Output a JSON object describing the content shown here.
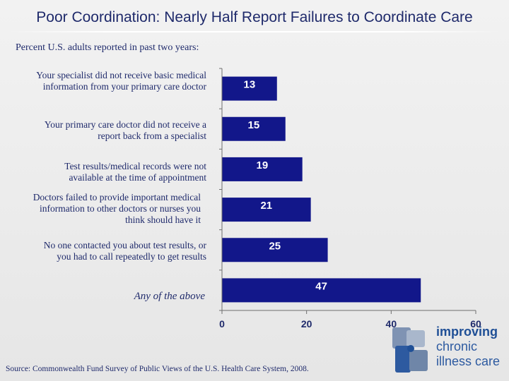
{
  "title": "Poor Coordination: Nearly Half Report Failures to Coordinate Care",
  "subtitle": "Percent U.S. adults reported in past two years:",
  "source": "Source: Commonwealth Fund Survey of Public Views of the U.S. Health Care System, 2008.",
  "logo": {
    "line1": "improving",
    "line2": "chronic",
    "line3": "illness care"
  },
  "colors": {
    "bar": "#12178a",
    "bar_label": "#ffffff",
    "text": "#1f2a6b",
    "axis": "#6e6e6e"
  },
  "chart_data": {
    "type": "bar",
    "orientation": "horizontal",
    "categories": [
      "Your specialist did not receive basic medical information from your primary care doctor",
      "Your primary care doctor did not receive a report back from a specialist",
      "Test results/medical records were not available at the time of appointment",
      "Doctors failed to provide important medical information to other doctors or nurses you think should have it",
      "No one contacted you about test results, or you had to call repeatedly to get results",
      "Any of the above"
    ],
    "values": [
      13,
      15,
      19,
      21,
      25,
      47
    ],
    "xlim": [
      0,
      60
    ],
    "xticks": [
      0,
      20,
      40,
      60
    ],
    "data_labels": true,
    "grid": false
  }
}
